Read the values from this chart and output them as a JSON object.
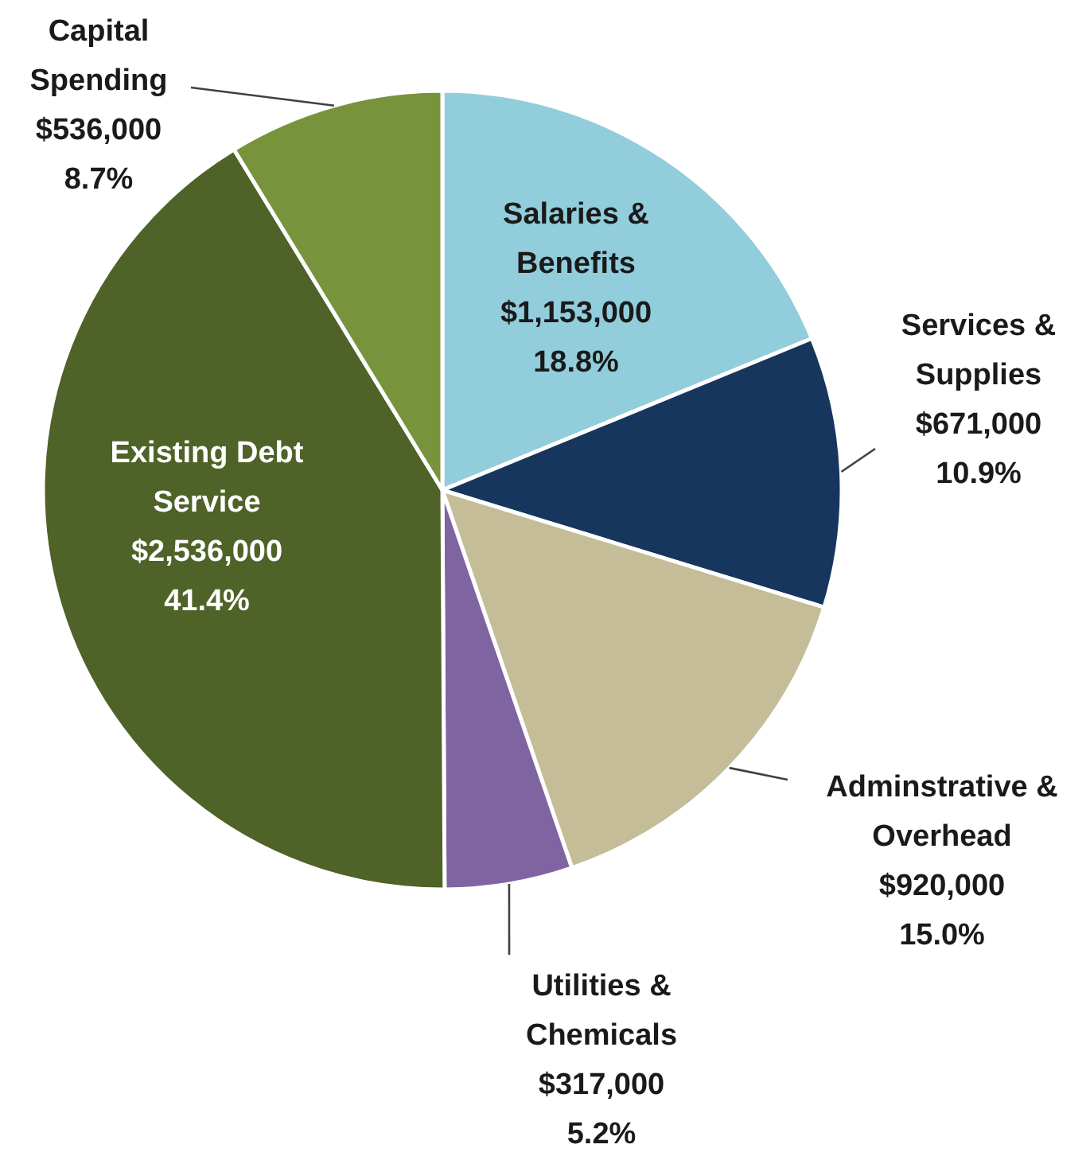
{
  "chart_data": {
    "type": "pie",
    "categories": [
      "Salaries & Benefits",
      "Services & Supplies",
      "Adminstrative & Overhead",
      "Utilities & Chemicals",
      "Existing Debt Service",
      "Capital Spending"
    ],
    "values": [
      1153000,
      671000,
      920000,
      317000,
      2536000,
      536000
    ],
    "value_labels": [
      "$1,153,000\n18.8%",
      "$671,000\n10.9%",
      "$920,000\n15.0%",
      "$317,000\n5.2%",
      "$2,536,000\n41.4%",
      "$536,000\n8.7%"
    ],
    "colors": [
      "#92cddc",
      "#17365d",
      "#c4bd97",
      "#8064a2",
      "#4f6228",
      "#77933c"
    ]
  }
}
